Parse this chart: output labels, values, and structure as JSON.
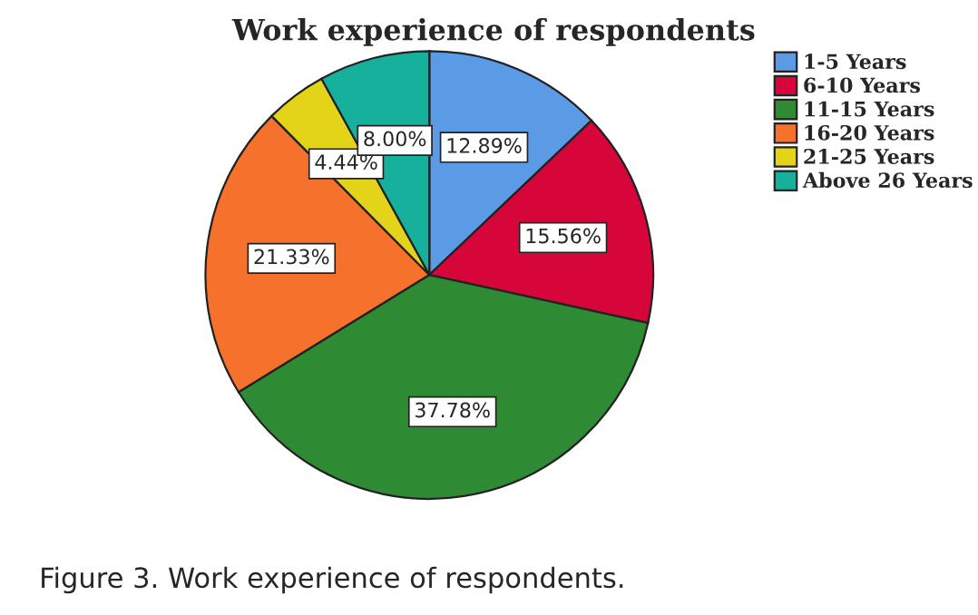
{
  "chart_data": {
    "type": "pie",
    "title": "Work experience of respondents",
    "categories": [
      "1-5 Years",
      "6-10 Years",
      "11-15 Years",
      "16-20 Years",
      "21-25 Years",
      "Above 26 Years"
    ],
    "values": [
      12.89,
      15.56,
      37.78,
      21.33,
      4.44,
      8.0
    ],
    "colors": [
      "#5b9be6",
      "#d7063a",
      "#2f8a34",
      "#f6712b",
      "#e3d41a",
      "#16b09c"
    ],
    "value_labels": [
      "12.89%",
      "15.56%",
      "37.78%",
      "21.33%",
      "4.44%",
      "8.00%"
    ],
    "legend": "right",
    "annotations": [
      "Figure 3. Work experience of respondents."
    ]
  }
}
